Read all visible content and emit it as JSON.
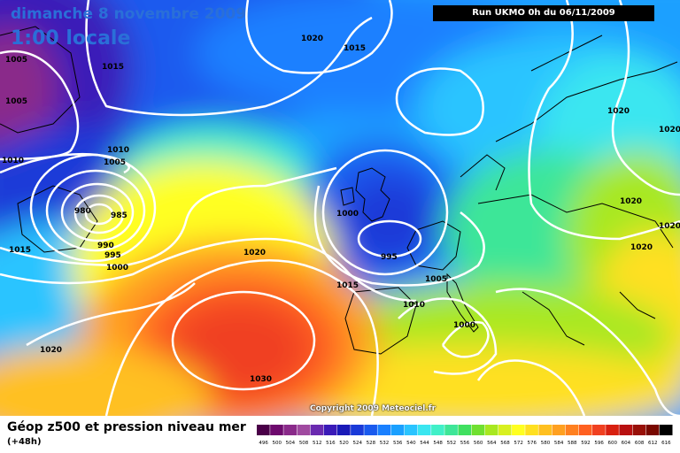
{
  "header": {
    "date": "dimanche 8 novembre 2009",
    "local_time": "1:00 locale",
    "run_info": "Run UKMO 0h du 06/11/2009"
  },
  "copyright": "Copyright 2009 Meteociel.fr",
  "footer": {
    "title": "Géop z500 et pression niveau mer",
    "subtitle": "(+48h)"
  },
  "legend_scale": {
    "values": [
      "496",
      "500",
      "504",
      "508",
      "512",
      "516",
      "520",
      "524",
      "528",
      "532",
      "536",
      "540",
      "544",
      "548",
      "552",
      "556",
      "560",
      "564",
      "568",
      "572",
      "576",
      "580",
      "584",
      "588",
      "592",
      "596",
      "600",
      "604",
      "608",
      "612",
      "616"
    ],
    "colors": [
      "#4a0048",
      "#6e0a6e",
      "#8a2a8a",
      "#a04aa0",
      "#6a2ab0",
      "#3a1ab8",
      "#1a1ab8",
      "#1a3ad8",
      "#1a5aee",
      "#1a80ff",
      "#1aa0ff",
      "#2ac4ff",
      "#3ae6f0",
      "#40f0c8",
      "#3ee698",
      "#40e060",
      "#70e030",
      "#a8e820",
      "#d8f020",
      "#ffff20",
      "#ffe020",
      "#ffc020",
      "#ffa020",
      "#ff8020",
      "#ff6020",
      "#f04020",
      "#d82010",
      "#b81010",
      "#981008",
      "#780800",
      "#000000"
    ]
  },
  "isobar_labels": [
    "1005",
    "1005",
    "1015",
    "1020",
    "1015",
    "1010",
    "1005",
    "980",
    "985",
    "990",
    "995",
    "1000",
    "1010",
    "1015",
    "1000",
    "995",
    "1005",
    "1020",
    "1010",
    "1015",
    "1020",
    "1000",
    "1030",
    "1020",
    "1020",
    "1020",
    "1020",
    "1020"
  ]
}
